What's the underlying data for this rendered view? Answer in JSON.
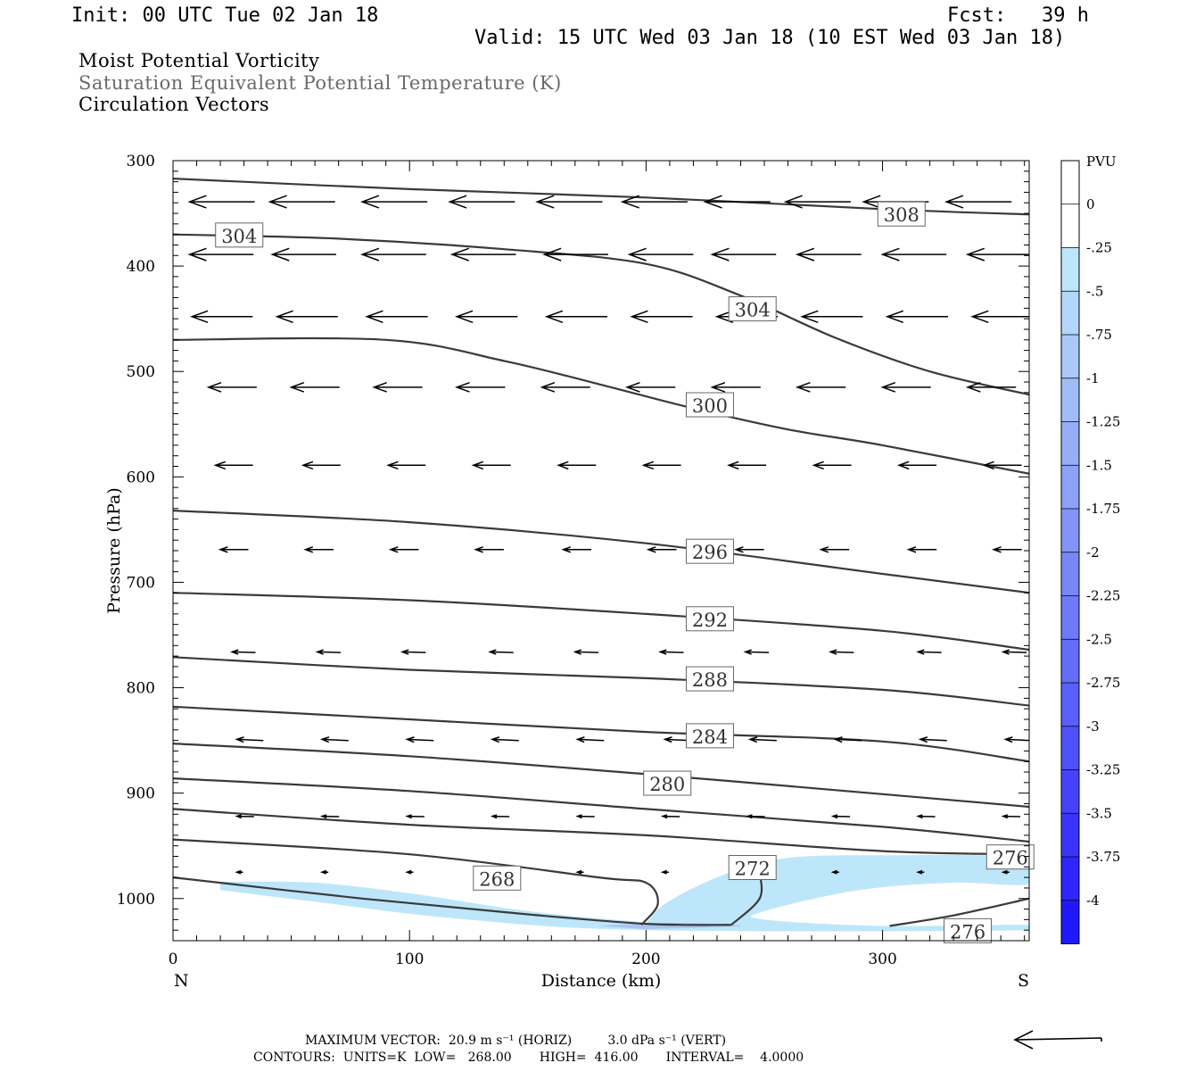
{
  "header": {
    "init": "Init: 00 UTC Tue 02 Jan 18",
    "fcst": "Fcst:   39 h",
    "valid": "Valid: 15 UTC Wed 03 Jan 18 (10 EST Wed 03 Jan 18)"
  },
  "fields": {
    "line1": "Moist Potential Vorticity",
    "line2": "Saturation Equivalent Potential Temperature (K)",
    "line3": "Circulation Vectors"
  },
  "colors": {
    "contour": "#3a3a3a",
    "fill_light": "#bde6fa",
    "fill_mid": "#a9c4f0",
    "vector": "#000000"
  },
  "chart_data": {
    "type": "cross-section",
    "xlabel": "Distance (km)",
    "ylabel": "Pressure (hPa)",
    "xlim": [
      0,
      362
    ],
    "ylim": [
      1040,
      300
    ],
    "x_ticks": [
      0,
      100,
      200,
      300
    ],
    "x_tick_labels": [
      "0",
      "100",
      "200",
      "300"
    ],
    "y_ticks": [
      300,
      400,
      500,
      600,
      700,
      800,
      900,
      1000
    ],
    "y_tick_labels": [
      "300",
      "400",
      "500",
      "600",
      "700",
      "800",
      "900",
      "1000"
    ],
    "end_labels": {
      "left": "N",
      "right": "S"
    },
    "contours": [
      {
        "level": 308,
        "pts": [
          [
            0,
            317
          ],
          [
            100,
            327
          ],
          [
            200,
            335
          ],
          [
            300,
            346
          ],
          [
            362,
            351
          ]
        ]
      },
      {
        "level": 304,
        "pts": [
          [
            0,
            370
          ],
          [
            70,
            374
          ],
          [
            140,
            384
          ],
          [
            200,
            398
          ],
          [
            240,
            428
          ],
          [
            280,
            468
          ],
          [
            320,
            500
          ],
          [
            362,
            522
          ]
        ]
      },
      {
        "level": 300,
        "pts": [
          [
            0,
            470
          ],
          [
            90,
            470
          ],
          [
            140,
            490
          ],
          [
            180,
            512
          ],
          [
            220,
            535
          ],
          [
            260,
            555
          ],
          [
            300,
            570
          ],
          [
            362,
            597
          ]
        ]
      },
      {
        "level": 296,
        "pts": [
          [
            0,
            632
          ],
          [
            100,
            643
          ],
          [
            200,
            663
          ],
          [
            300,
            692
          ],
          [
            362,
            710
          ]
        ]
      },
      {
        "level": 292,
        "pts": [
          [
            0,
            710
          ],
          [
            100,
            717
          ],
          [
            200,
            730
          ],
          [
            300,
            746
          ],
          [
            362,
            764
          ]
        ]
      },
      {
        "level": 288,
        "pts": [
          [
            0,
            771
          ],
          [
            100,
            783
          ],
          [
            200,
            791
          ],
          [
            300,
            802
          ],
          [
            362,
            817
          ]
        ]
      },
      {
        "level": 284,
        "pts": [
          [
            0,
            818
          ],
          [
            100,
            830
          ],
          [
            200,
            842
          ],
          [
            300,
            851
          ],
          [
            362,
            870
          ]
        ]
      },
      {
        "level": 280,
        "pts": [
          [
            0,
            853
          ],
          [
            100,
            865
          ],
          [
            200,
            882
          ],
          [
            300,
            901
          ],
          [
            362,
            913
          ]
        ]
      },
      {
        "level": 276,
        "pts": [
          [
            0,
            886
          ],
          [
            100,
            898
          ],
          [
            200,
            915
          ],
          [
            300,
            932
          ],
          [
            362,
            946
          ]
        ]
      },
      {
        "level": 276,
        "pts": [
          [
            0,
            915
          ],
          [
            100,
            930
          ],
          [
            200,
            940
          ],
          [
            300,
            955
          ],
          [
            362,
            958
          ]
        ]
      },
      {
        "level": 272,
        "pts": [
          [
            0,
            944
          ],
          [
            100,
            958
          ],
          [
            180,
            980
          ],
          [
            200,
            985
          ],
          [
            205,
            1005
          ],
          [
            198,
            1025
          ]
        ]
      },
      {
        "level": 268,
        "pts": [
          [
            0,
            980
          ],
          [
            80,
            1000
          ],
          [
            150,
            1015
          ],
          [
            200,
            1024
          ],
          [
            236,
            1025
          ]
        ]
      },
      {
        "level": 272,
        "pts": [
          [
            236,
            1025
          ],
          [
            248,
            1000
          ],
          [
            248,
            975
          ]
        ]
      },
      {
        "level": 276,
        "pts": [
          [
            303,
            1026
          ],
          [
            330,
            1016
          ],
          [
            362,
            1000
          ]
        ]
      }
    ],
    "contour_labels": [
      {
        "text": "308",
        "x": 298,
        "p": 351
      },
      {
        "text": "304",
        "x": 18,
        "p": 371
      },
      {
        "text": "304",
        "x": 235,
        "p": 441
      },
      {
        "text": "300",
        "x": 217,
        "p": 532
      },
      {
        "text": "296",
        "x": 217,
        "p": 671
      },
      {
        "text": "292",
        "x": 217,
        "p": 735
      },
      {
        "text": "288",
        "x": 217,
        "p": 792
      },
      {
        "text": "284",
        "x": 217,
        "p": 846
      },
      {
        "text": "280",
        "x": 199,
        "p": 891
      },
      {
        "text": "276",
        "x": 344,
        "p": 961
      },
      {
        "text": "272",
        "x": 235,
        "p": 971
      },
      {
        "text": "268",
        "x": 127,
        "p": 981
      },
      {
        "text": "276",
        "x": 326,
        "p": 1031
      }
    ],
    "pv_shading": [
      {
        "color": "#bde6fa",
        "pts": [
          [
            20,
            984
          ],
          [
            60,
            985
          ],
          [
            100,
            995
          ],
          [
            150,
            1012
          ],
          [
            196,
            1022
          ],
          [
            200,
            1023
          ],
          [
            208,
            1005
          ],
          [
            230,
            980
          ],
          [
            258,
            962
          ],
          [
            300,
            959
          ],
          [
            362,
            962
          ],
          [
            362,
            986
          ],
          [
            330,
            985
          ],
          [
            290,
            992
          ],
          [
            250,
            1012
          ],
          [
            250,
            1020
          ],
          [
            300,
            1026
          ],
          [
            362,
            1025
          ],
          [
            362,
            1030
          ],
          [
            200,
            1030
          ],
          [
            120,
            1019
          ],
          [
            60,
            1003
          ],
          [
            20,
            992
          ]
        ]
      },
      {
        "color": "#a9c4f0",
        "pts": [
          [
            180,
            1026
          ],
          [
            210,
            1023
          ],
          [
            240,
            1026
          ],
          [
            200,
            1029
          ]
        ]
      }
    ],
    "vectors": [
      {
        "p": 339,
        "xs": [
          7,
          41,
          80,
          117,
          154,
          190,
          225,
          259,
          292,
          327
        ],
        "u": 20.9,
        "v": 0.0
      },
      {
        "p": 389,
        "xs": [
          7,
          42,
          80,
          118,
          157,
          193,
          228,
          264,
          300,
          336
        ],
        "u": 20.5,
        "v": 0.0
      },
      {
        "p": 448,
        "xs": [
          8,
          44,
          82,
          120,
          158,
          194,
          230,
          266,
          302,
          338
        ],
        "u": 19.5,
        "v": 0.0
      },
      {
        "p": 515,
        "xs": [
          15,
          50,
          85,
          120,
          156,
          192,
          228,
          264,
          300,
          336
        ],
        "u": 15.5,
        "v": 0.0
      },
      {
        "p": 589,
        "xs": [
          18,
          55,
          91,
          127,
          163,
          199,
          235,
          271,
          307,
          343
        ],
        "u": 12.0,
        "v": 0.0
      },
      {
        "p": 669,
        "xs": [
          20,
          56,
          92,
          128,
          165,
          201,
          238,
          274,
          311,
          347
        ],
        "u": 9.0,
        "v": 0.0
      },
      {
        "p": 766,
        "xs": [
          25,
          61,
          97,
          134,
          170,
          206,
          242,
          278,
          315,
          351
        ],
        "u": 7.5,
        "v": 0.2
      },
      {
        "p": 849,
        "xs": [
          27,
          63,
          99,
          135,
          171,
          208,
          244,
          280,
          316,
          352
        ],
        "u": 8.5,
        "v": 0.4
      },
      {
        "p": 922,
        "xs": [
          27,
          63,
          99,
          135,
          171,
          207,
          243,
          279,
          315,
          351
        ],
        "u": 5.5,
        "v": 0.1
      },
      {
        "p": 975,
        "xs": [
          27,
          63,
          99,
          135,
          171,
          207,
          243,
          279,
          315,
          351
        ],
        "u": 2.0,
        "v": 0.0
      }
    ],
    "colorbar": {
      "unit": "PVU",
      "labels": [
        "0",
        "-.25",
        "-.5",
        "-.75",
        "-1",
        "-1.25",
        "-1.5",
        "-1.75",
        "-2",
        "-2.25",
        "-2.5",
        "-2.75",
        "-3",
        "-3.25",
        "-3.5",
        "-3.75",
        "-4"
      ],
      "colors": [
        "#ffffff",
        "#ffffff",
        "#bde6fa",
        "#b4d6fa",
        "#aac9f8",
        "#a0bcf8",
        "#96aef8",
        "#8ca1f8",
        "#8294f8",
        "#7887f8",
        "#6e7afa",
        "#646cfa",
        "#5a5efa",
        "#4e50fa",
        "#4442fa",
        "#3a34fb",
        "#2e26fc",
        "#2018fc"
      ]
    }
  },
  "footer": {
    "max_vector_line": "MAXIMUM VECTOR:  20.9 m s⁻¹ (HORIZ)         3.0 dPa s⁻¹ (VERT)",
    "contours_line": "CONTOURS:  UNITS=K  LOW=   268.00       HIGH=  416.00       INTERVAL=    4.0000"
  }
}
